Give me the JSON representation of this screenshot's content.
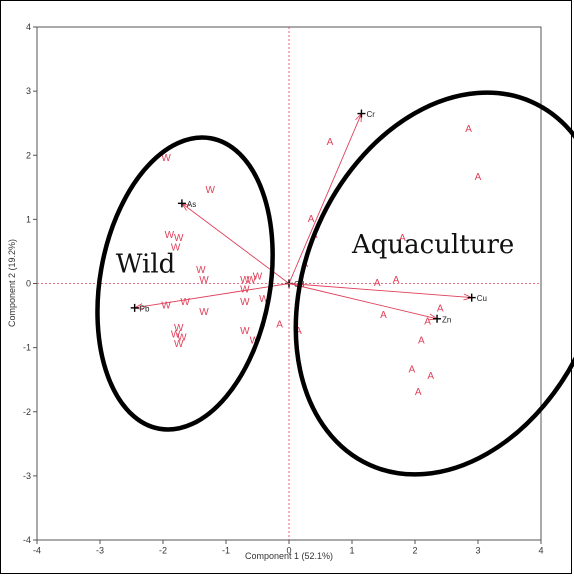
{
  "chart_data": {
    "type": "scatter",
    "xlabel": "Component 1 (52.1%)",
    "ylabel": "Component 2 (19.2%)",
    "xlim": [
      -4,
      4
    ],
    "ylim": [
      -4,
      4
    ],
    "x_ticks": [
      "-4",
      "-3",
      "-2",
      "-1",
      "0",
      "1",
      "2",
      "3",
      "4"
    ],
    "y_ticks": [
      "4",
      "3",
      "2",
      "1",
      "0",
      "-1",
      "-2",
      "-3",
      "-4"
    ],
    "colors": {
      "points": "#e0405a",
      "loadings": "#e0405a",
      "reference_lines": "#e0405a",
      "ellipses": "#000000"
    },
    "series": [
      {
        "marker": "A",
        "points": [
          [
            2.85,
            2.4
          ],
          [
            3.0,
            1.65
          ],
          [
            0.65,
            2.2
          ],
          [
            0.35,
            1.0
          ],
          [
            0.4,
            0.75
          ],
          [
            1.8,
            0.7
          ],
          [
            0.25,
            0.3
          ],
          [
            1.4,
            0.0
          ],
          [
            1.7,
            0.05
          ],
          [
            1.5,
            -0.5
          ],
          [
            2.4,
            -0.4
          ],
          [
            2.2,
            -0.6
          ],
          [
            0.15,
            -0.75
          ],
          [
            2.1,
            -0.9
          ],
          [
            1.95,
            -1.35
          ],
          [
            2.25,
            -1.45
          ],
          [
            2.05,
            -1.7
          ],
          [
            -0.15,
            -0.65
          ]
        ]
      },
      {
        "marker": "W",
        "points": [
          [
            -1.95,
            1.95
          ],
          [
            -1.25,
            1.45
          ],
          [
            -1.9,
            0.75
          ],
          [
            -1.75,
            0.7
          ],
          [
            -1.8,
            0.55
          ],
          [
            -1.4,
            0.2
          ],
          [
            -1.35,
            0.05
          ],
          [
            -0.7,
            0.05
          ],
          [
            -0.6,
            0.05
          ],
          [
            -0.5,
            0.1
          ],
          [
            -0.7,
            -0.1
          ],
          [
            -0.4,
            -0.25
          ],
          [
            -1.65,
            -0.3
          ],
          [
            -1.95,
            -0.35
          ],
          [
            -1.35,
            -0.45
          ],
          [
            -0.7,
            -0.3
          ],
          [
            -0.7,
            -0.75
          ],
          [
            -1.75,
            -0.7
          ],
          [
            -1.7,
            -0.85
          ],
          [
            -1.75,
            -0.95
          ],
          [
            -0.55,
            -0.9
          ],
          [
            -1.8,
            -0.8
          ]
        ]
      }
    ],
    "loadings": [
      {
        "label": "Cr",
        "x": 1.15,
        "y": 2.65
      },
      {
        "label": "As",
        "x": -1.7,
        "y": 1.25
      },
      {
        "label": "Cd",
        "x": 0.0,
        "y": 0.0
      },
      {
        "label": "Cu",
        "x": 2.9,
        "y": -0.22
      },
      {
        "label": "Zn",
        "x": 2.35,
        "y": -0.55
      },
      {
        "label": "Pb",
        "x": -2.45,
        "y": -0.38
      }
    ],
    "groups": [
      {
        "label": "Wild",
        "label_at": [
          -2.75,
          0.3
        ],
        "cx": -1.65,
        "cy": 0.0,
        "rx": 1.35,
        "ry": 2.3,
        "rotation_deg": 10
      },
      {
        "label": "Aquaculture",
        "label_at": [
          1.0,
          0.6
        ],
        "cx": 2.57,
        "cy": 0.0,
        "rx": 2.3,
        "ry": 3.1,
        "rotation_deg": 24
      }
    ],
    "grid": false,
    "reference_lines": {
      "x": 0,
      "y": 0
    }
  }
}
